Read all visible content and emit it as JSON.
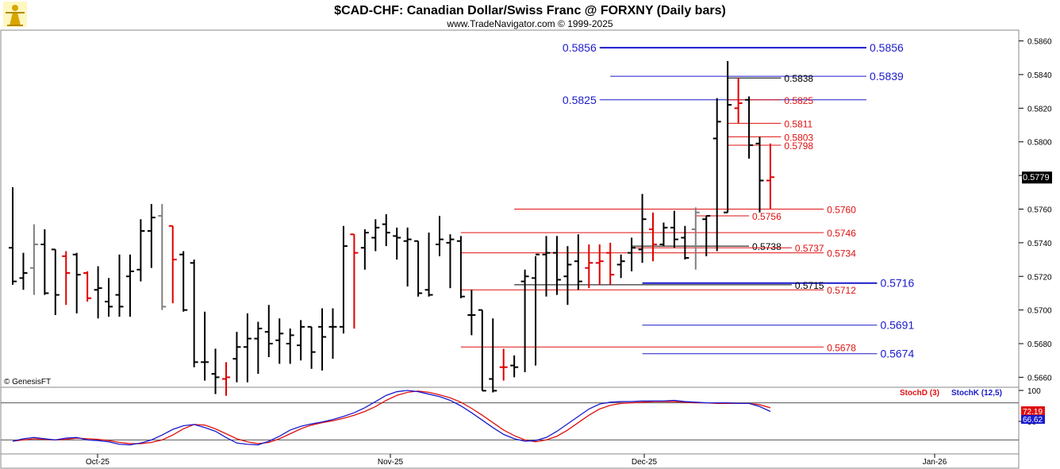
{
  "header": {
    "title": "$CAD-CHF:  Canadian Dollar/Swiss Franc @ FORXNY  (Daily bars)",
    "subtitle": "www.TradeNavigator.com © 1999-2025",
    "watermark": "© GenesisFT",
    "logo_icon": "trader-figure-icon"
  },
  "colors": {
    "up_bar": "#000000",
    "down_bar": "#e00000",
    "neutral_bar": "#808080",
    "level_blue": "#1a1acc",
    "level_red": "#e01010",
    "stoch_d": "#e01010",
    "stoch_k": "#1a1acc",
    "last_price_bg": "#000000",
    "frame": "#888888"
  },
  "chart_data": [
    {
      "type": "ohlc",
      "title": "$CAD-CHF:  Canadian Dollar/Swiss Franc @ FORXNY  (Daily bars)",
      "ylim": [
        0.5655,
        0.5865
      ],
      "yticks": [
        "0.5660",
        "0.5680",
        "0.5700",
        "0.5720",
        "0.5740",
        "0.5760",
        "0.5780",
        "0.5800",
        "0.5820",
        "0.5840",
        "0.5860"
      ],
      "x_labels": [
        "Oct-25",
        "Nov-25",
        "Dec-25",
        "Jan-26"
      ],
      "last_price": "0.5779",
      "bars": [
        {
          "o": 0.5737,
          "h": 0.5773,
          "l": 0.5715,
          "c": 0.5717,
          "k": "up"
        },
        {
          "o": 0.5719,
          "h": 0.5734,
          "l": 0.5712,
          "c": 0.5722,
          "k": "up"
        },
        {
          "o": 0.5725,
          "h": 0.5751,
          "l": 0.5709,
          "c": 0.5739,
          "k": "flat"
        },
        {
          "o": 0.5739,
          "h": 0.5748,
          "l": 0.5709,
          "c": 0.571,
          "k": "up"
        },
        {
          "o": 0.5736,
          "h": 0.5736,
          "l": 0.5697,
          "c": 0.5709,
          "k": "up"
        },
        {
          "o": 0.5732,
          "h": 0.5735,
          "l": 0.5703,
          "c": 0.5722,
          "k": "down"
        },
        {
          "o": 0.5733,
          "h": 0.5734,
          "l": 0.5698,
          "c": 0.5721,
          "k": "up"
        },
        {
          "o": 0.5722,
          "h": 0.5723,
          "l": 0.5705,
          "c": 0.5707,
          "k": "down"
        },
        {
          "o": 0.5712,
          "h": 0.5726,
          "l": 0.5695,
          "c": 0.5713,
          "k": "up"
        },
        {
          "o": 0.5705,
          "h": 0.5719,
          "l": 0.5696,
          "c": 0.5702,
          "k": "up"
        },
        {
          "o": 0.5709,
          "h": 0.5733,
          "l": 0.5696,
          "c": 0.5702,
          "k": "up"
        },
        {
          "o": 0.572,
          "h": 0.5733,
          "l": 0.5696,
          "c": 0.5723,
          "k": "up"
        },
        {
          "o": 0.5724,
          "h": 0.5754,
          "l": 0.5717,
          "c": 0.5747,
          "k": "up"
        },
        {
          "o": 0.5747,
          "h": 0.5763,
          "l": 0.5725,
          "c": 0.5755,
          "k": "up"
        },
        {
          "o": 0.5756,
          "h": 0.5763,
          "l": 0.57,
          "c": 0.5702,
          "k": "flat"
        },
        {
          "o": 0.575,
          "h": 0.575,
          "l": 0.5704,
          "c": 0.573,
          "k": "down"
        },
        {
          "o": 0.5733,
          "h": 0.5735,
          "l": 0.5699,
          "c": 0.57,
          "k": "up"
        },
        {
          "o": 0.5728,
          "h": 0.573,
          "l": 0.5666,
          "c": 0.5669,
          "k": "up"
        },
        {
          "o": 0.5669,
          "h": 0.5699,
          "l": 0.5658,
          "c": 0.5669,
          "k": "up"
        },
        {
          "o": 0.5662,
          "h": 0.5677,
          "l": 0.565,
          "c": 0.566,
          "k": "up"
        },
        {
          "o": 0.5659,
          "h": 0.5669,
          "l": 0.5649,
          "c": 0.566,
          "k": "down"
        },
        {
          "o": 0.5671,
          "h": 0.5687,
          "l": 0.5657,
          "c": 0.5678,
          "k": "up"
        },
        {
          "o": 0.5678,
          "h": 0.5698,
          "l": 0.5657,
          "c": 0.5683,
          "k": "up"
        },
        {
          "o": 0.5683,
          "h": 0.5693,
          "l": 0.5662,
          "c": 0.5689,
          "k": "up"
        },
        {
          "o": 0.5687,
          "h": 0.5703,
          "l": 0.5672,
          "c": 0.568,
          "k": "up"
        },
        {
          "o": 0.5682,
          "h": 0.5695,
          "l": 0.5668,
          "c": 0.5686,
          "k": "up"
        },
        {
          "o": 0.568,
          "h": 0.5689,
          "l": 0.5668,
          "c": 0.5685,
          "k": "up"
        },
        {
          "o": 0.5679,
          "h": 0.5694,
          "l": 0.567,
          "c": 0.569,
          "k": "up"
        },
        {
          "o": 0.569,
          "h": 0.569,
          "l": 0.5665,
          "c": 0.5675,
          "k": "up"
        },
        {
          "o": 0.569,
          "h": 0.5701,
          "l": 0.5664,
          "c": 0.5684,
          "k": "up"
        },
        {
          "o": 0.569,
          "h": 0.5701,
          "l": 0.5671,
          "c": 0.569,
          "k": "up"
        },
        {
          "o": 0.569,
          "h": 0.575,
          "l": 0.5686,
          "c": 0.5738,
          "k": "up"
        },
        {
          "o": 0.5745,
          "h": 0.5745,
          "l": 0.5689,
          "c": 0.5734,
          "k": "down"
        },
        {
          "o": 0.5737,
          "h": 0.5748,
          "l": 0.5724,
          "c": 0.5746,
          "k": "up"
        },
        {
          "o": 0.5743,
          "h": 0.5754,
          "l": 0.5735,
          "c": 0.5749,
          "k": "up"
        },
        {
          "o": 0.5751,
          "h": 0.5757,
          "l": 0.5738,
          "c": 0.5746,
          "k": "up"
        },
        {
          "o": 0.5744,
          "h": 0.5749,
          "l": 0.573,
          "c": 0.5743,
          "k": "up"
        },
        {
          "o": 0.5741,
          "h": 0.5749,
          "l": 0.5714,
          "c": 0.5742,
          "k": "up"
        },
        {
          "o": 0.5741,
          "h": 0.5741,
          "l": 0.5708,
          "c": 0.571,
          "k": "up"
        },
        {
          "o": 0.5712,
          "h": 0.5746,
          "l": 0.5708,
          "c": 0.5709,
          "k": "up"
        },
        {
          "o": 0.5739,
          "h": 0.5756,
          "l": 0.5732,
          "c": 0.5742,
          "k": "up"
        },
        {
          "o": 0.574,
          "h": 0.5745,
          "l": 0.5713,
          "c": 0.5742,
          "k": "up"
        },
        {
          "o": 0.5741,
          "h": 0.5744,
          "l": 0.5707,
          "c": 0.5708,
          "k": "up"
        },
        {
          "o": 0.5697,
          "h": 0.5712,
          "l": 0.5685,
          "c": 0.5697,
          "k": "up"
        },
        {
          "o": 0.57,
          "h": 0.57,
          "l": 0.5652,
          "c": 0.5652,
          "k": "up"
        },
        {
          "o": 0.5659,
          "h": 0.5695,
          "l": 0.5651,
          "c": 0.5652,
          "k": "up"
        },
        {
          "o": 0.5666,
          "h": 0.5677,
          "l": 0.5658,
          "c": 0.5666,
          "k": "down"
        },
        {
          "o": 0.5667,
          "h": 0.5673,
          "l": 0.566,
          "c": 0.5666,
          "k": "up"
        },
        {
          "o": 0.5717,
          "h": 0.5724,
          "l": 0.5663,
          "c": 0.572,
          "k": "up"
        },
        {
          "o": 0.5719,
          "h": 0.5732,
          "l": 0.5667,
          "c": 0.5733,
          "k": "up"
        },
        {
          "o": 0.5733,
          "h": 0.5744,
          "l": 0.5708,
          "c": 0.5734,
          "k": "up"
        },
        {
          "o": 0.5734,
          "h": 0.5744,
          "l": 0.5709,
          "c": 0.5718,
          "k": "up"
        },
        {
          "o": 0.572,
          "h": 0.5738,
          "l": 0.5703,
          "c": 0.5727,
          "k": "up"
        },
        {
          "o": 0.5729,
          "h": 0.5745,
          "l": 0.5712,
          "c": 0.5717,
          "k": "up"
        },
        {
          "o": 0.5725,
          "h": 0.5739,
          "l": 0.5713,
          "c": 0.5728,
          "k": "down"
        },
        {
          "o": 0.5728,
          "h": 0.5739,
          "l": 0.5715,
          "c": 0.5729,
          "k": "down"
        },
        {
          "o": 0.5734,
          "h": 0.574,
          "l": 0.5715,
          "c": 0.5721,
          "k": "down"
        },
        {
          "o": 0.5727,
          "h": 0.5733,
          "l": 0.5719,
          "c": 0.5729,
          "k": "up"
        },
        {
          "o": 0.5734,
          "h": 0.5743,
          "l": 0.5723,
          "c": 0.5737,
          "k": "up"
        },
        {
          "o": 0.5736,
          "h": 0.5769,
          "l": 0.5728,
          "c": 0.5754,
          "k": "up"
        },
        {
          "o": 0.5748,
          "h": 0.5758,
          "l": 0.5729,
          "c": 0.5739,
          "k": "down"
        },
        {
          "o": 0.5739,
          "h": 0.5752,
          "l": 0.5738,
          "c": 0.5749,
          "k": "up"
        },
        {
          "o": 0.5749,
          "h": 0.5759,
          "l": 0.5737,
          "c": 0.5742,
          "k": "up"
        },
        {
          "o": 0.5743,
          "h": 0.575,
          "l": 0.573,
          "c": 0.5731,
          "k": "up"
        },
        {
          "o": 0.5748,
          "h": 0.5761,
          "l": 0.5724,
          "c": 0.5758,
          "k": "flat"
        },
        {
          "o": 0.5754,
          "h": 0.5756,
          "l": 0.5732,
          "c": 0.5756,
          "k": "up"
        },
        {
          "o": 0.5802,
          "h": 0.5826,
          "l": 0.5735,
          "c": 0.5812,
          "k": "up"
        },
        {
          "o": 0.5758,
          "h": 0.5848,
          "l": 0.5758,
          "c": 0.5822,
          "k": "up"
        },
        {
          "o": 0.582,
          "h": 0.5838,
          "l": 0.5811,
          "c": 0.5823,
          "k": "down"
        },
        {
          "o": 0.5825,
          "h": 0.5827,
          "l": 0.579,
          "c": 0.5798,
          "k": "up"
        },
        {
          "o": 0.5799,
          "h": 0.5803,
          "l": 0.5758,
          "c": 0.5777,
          "k": "up"
        },
        {
          "o": 0.5777,
          "h": 0.5799,
          "l": 0.576,
          "c": 0.5779,
          "k": "down"
        }
      ],
      "levels": [
        {
          "value": 0.5856,
          "label": "0.5856",
          "color": "blue",
          "thick": true,
          "x_from": 55,
          "x_to": 80,
          "label_side": "right",
          "label_size": "large"
        },
        {
          "value": 0.5856,
          "label": "0.5856",
          "color": "blue",
          "thick": true,
          "x_from": 55,
          "x_to": 55,
          "label_side": "left-start",
          "label_size": "large"
        },
        {
          "value": 0.5839,
          "label": "0.5839",
          "color": "blue",
          "thick": false,
          "x_from": 56,
          "x_to": 80,
          "label_side": "right",
          "label_size": "large"
        },
        {
          "value": 0.5838,
          "label": "0.5838",
          "color": "black",
          "thick": false,
          "x_from": 67,
          "x_to": 72,
          "label_side": "right",
          "label_size": "small"
        },
        {
          "value": 0.5825,
          "label": "0.5825",
          "color": "blue",
          "thick": false,
          "x_from": 55,
          "x_to": 80,
          "label_side": "left-start",
          "label_size": "large"
        },
        {
          "value": 0.5825,
          "label": "0.5825",
          "color": "red",
          "thick": false,
          "x_from": 67,
          "x_to": 72,
          "label_side": "right",
          "label_size": "small"
        },
        {
          "value": 0.5811,
          "label": "0.5811",
          "color": "red",
          "thick": false,
          "x_from": 67,
          "x_to": 72,
          "label_side": "right",
          "label_size": "small"
        },
        {
          "value": 0.5803,
          "label": "0.5803",
          "color": "red",
          "thick": false,
          "x_from": 67,
          "x_to": 72,
          "label_side": "right",
          "label_size": "small"
        },
        {
          "value": 0.5798,
          "label": "0.5798",
          "color": "red",
          "thick": false,
          "x_from": 67,
          "x_to": 72,
          "label_side": "right",
          "label_size": "small"
        },
        {
          "value": 0.576,
          "label": "0.5760",
          "color": "red",
          "thick": false,
          "x_from": 47,
          "x_to": 76,
          "label_side": "right",
          "label_size": "small"
        },
        {
          "value": 0.5756,
          "label": "0.5756",
          "color": "red",
          "thick": false,
          "x_from": 64,
          "x_to": 69,
          "label_side": "right",
          "label_size": "small"
        },
        {
          "value": 0.5746,
          "label": "0.5746",
          "color": "red",
          "thick": false,
          "x_from": 42,
          "x_to": 76,
          "label_side": "right",
          "label_size": "small"
        },
        {
          "value": 0.5738,
          "label": "0.5738",
          "color": "black",
          "thick": false,
          "x_from": 58,
          "x_to": 69,
          "label_side": "right",
          "label_size": "small"
        },
        {
          "value": 0.5737,
          "label": "0.5737",
          "color": "red",
          "thick": false,
          "x_from": 58,
          "x_to": 73,
          "label_side": "right",
          "label_size": "small"
        },
        {
          "value": 0.5734,
          "label": "0.5734",
          "color": "red",
          "thick": false,
          "x_from": 42,
          "x_to": 76,
          "label_side": "right",
          "label_size": "small"
        },
        {
          "value": 0.5716,
          "label": "0.5716",
          "color": "blue",
          "thick": true,
          "x_from": 59,
          "x_to": 81,
          "label_side": "right",
          "label_size": "large"
        },
        {
          "value": 0.5715,
          "label": "0.5715",
          "color": "black",
          "thick": false,
          "x_from": 47,
          "x_to": 73,
          "label_side": "right",
          "label_size": "small"
        },
        {
          "value": 0.5712,
          "label": "0.5712",
          "color": "red",
          "thick": false,
          "x_from": 42,
          "x_to": 76,
          "label_side": "right",
          "label_size": "small"
        },
        {
          "value": 0.5691,
          "label": "0.5691",
          "color": "blue",
          "thick": false,
          "x_from": 59,
          "x_to": 81,
          "label_side": "right",
          "label_size": "large"
        },
        {
          "value": 0.5678,
          "label": "0.5678",
          "color": "red",
          "thick": false,
          "x_from": 42,
          "x_to": 76,
          "label_side": "right",
          "label_size": "small"
        },
        {
          "value": 0.5674,
          "label": "0.5674",
          "color": "blue",
          "thick": false,
          "x_from": 59,
          "x_to": 81,
          "label_side": "right",
          "label_size": "large"
        }
      ]
    },
    {
      "type": "line",
      "ylim": [
        0,
        100
      ],
      "yticks": [
        "50",
        "100"
      ],
      "reference_lines": [
        20,
        80
      ],
      "last_values": [
        "72.19",
        "66.62"
      ],
      "series": [
        {
          "name": "StochD (3)",
          "color": "red",
          "values": [
            18,
            20,
            22,
            21,
            20,
            21,
            23,
            22,
            21,
            19,
            16,
            14,
            14,
            16,
            20,
            28,
            38,
            45,
            44,
            38,
            30,
            22,
            17,
            14,
            16,
            22,
            30,
            38,
            44,
            48,
            51,
            55,
            60,
            66,
            74,
            84,
            92,
            97,
            99,
            97,
            93,
            88,
            81,
            71,
            60,
            48,
            36,
            27,
            20,
            17,
            20,
            26,
            36,
            48,
            60,
            70,
            76,
            79,
            80,
            81,
            82,
            82,
            82,
            81,
            80,
            80,
            79,
            79,
            79,
            79,
            77,
            72
          ]
        },
        {
          "name": "StochK (12,5)",
          "color": "blue",
          "values": [
            18,
            22,
            24,
            22,
            20,
            23,
            24,
            20,
            19,
            17,
            13,
            12,
            15,
            20,
            28,
            37,
            43,
            45,
            40,
            34,
            24,
            15,
            13,
            12,
            18,
            26,
            36,
            42,
            46,
            49,
            53,
            58,
            64,
            72,
            82,
            92,
            98,
            100,
            98,
            94,
            90,
            84,
            75,
            64,
            52,
            40,
            29,
            22,
            18,
            19,
            24,
            34,
            46,
            58,
            70,
            78,
            81,
            82,
            82,
            83,
            83,
            83,
            84,
            82,
            81,
            80,
            80,
            80,
            79,
            79,
            74,
            66
          ]
        }
      ]
    }
  ]
}
